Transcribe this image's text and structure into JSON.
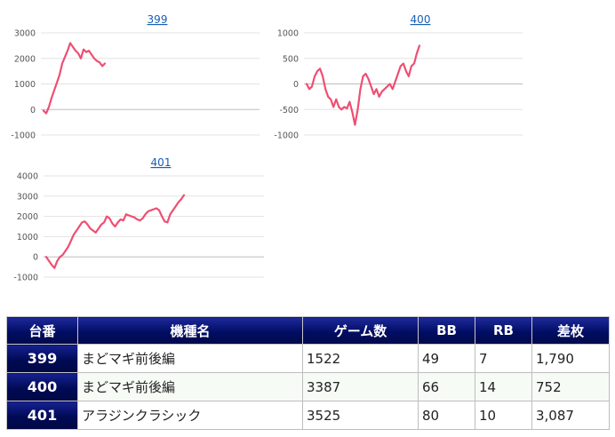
{
  "chart_data": [
    {
      "type": "line",
      "title": "399",
      "yticks": [
        3000,
        2000,
        1000,
        0,
        -1000
      ],
      "ylim": [
        -1000,
        3000
      ],
      "series": [
        {
          "values": [
            -50,
            -150,
            100,
            450,
            750,
            1050,
            1350,
            1800,
            2050,
            2300,
            2600,
            2450,
            2300,
            2200,
            2000,
            2350,
            2250,
            2300,
            2150,
            2000,
            1900,
            1850,
            1700,
            1800
          ]
        }
      ]
    },
    {
      "type": "line",
      "title": "400",
      "yticks": [
        1000,
        500,
        0,
        -500,
        -1000
      ],
      "ylim": [
        -1000,
        1000
      ],
      "series": [
        {
          "values": [
            0,
            -100,
            -50,
            150,
            250,
            300,
            150,
            -100,
            -250,
            -300,
            -450,
            -300,
            -450,
            -500,
            -450,
            -480,
            -350,
            -550,
            -800,
            -500,
            -100,
            150,
            200,
            100,
            -50,
            -200,
            -100,
            -250,
            -150,
            -100,
            -50,
            0,
            -100,
            50,
            200,
            350,
            400,
            250,
            150,
            350,
            400,
            600,
            750
          ]
        }
      ]
    },
    {
      "type": "line",
      "title": "401",
      "yticks": [
        4000,
        3000,
        2000,
        1000,
        0,
        -1000
      ],
      "ylim": [
        -1000,
        4000
      ],
      "series": [
        {
          "values": [
            0,
            -200,
            -400,
            -550,
            -200,
            0,
            100,
            300,
            500,
            800,
            1100,
            1300,
            1500,
            1700,
            1750,
            1600,
            1400,
            1300,
            1200,
            1400,
            1600,
            1700,
            2000,
            1900,
            1650,
            1500,
            1700,
            1850,
            1800,
            2100,
            2050,
            2000,
            1950,
            1850,
            1800,
            1900,
            2100,
            2250,
            2300,
            2350,
            2400,
            2300,
            2000,
            1750,
            1700,
            2100,
            2300,
            2500,
            2700,
            2850,
            3050
          ]
        }
      ]
    }
  ],
  "table": {
    "headers": [
      "台番",
      "機種名",
      "ゲーム数",
      "BB",
      "RB",
      "差枚"
    ],
    "rows": [
      {
        "num": "399",
        "name": "まどマギ前後編",
        "games": "1522",
        "bb": "49",
        "rb": "7",
        "diff": "1,790"
      },
      {
        "num": "400",
        "name": "まどマギ前後編",
        "games": "3387",
        "bb": "66",
        "rb": "14",
        "diff": "752"
      },
      {
        "num": "401",
        "name": "アラジンクラシック",
        "games": "3525",
        "bb": "80",
        "rb": "10",
        "diff": "3,087"
      }
    ]
  }
}
